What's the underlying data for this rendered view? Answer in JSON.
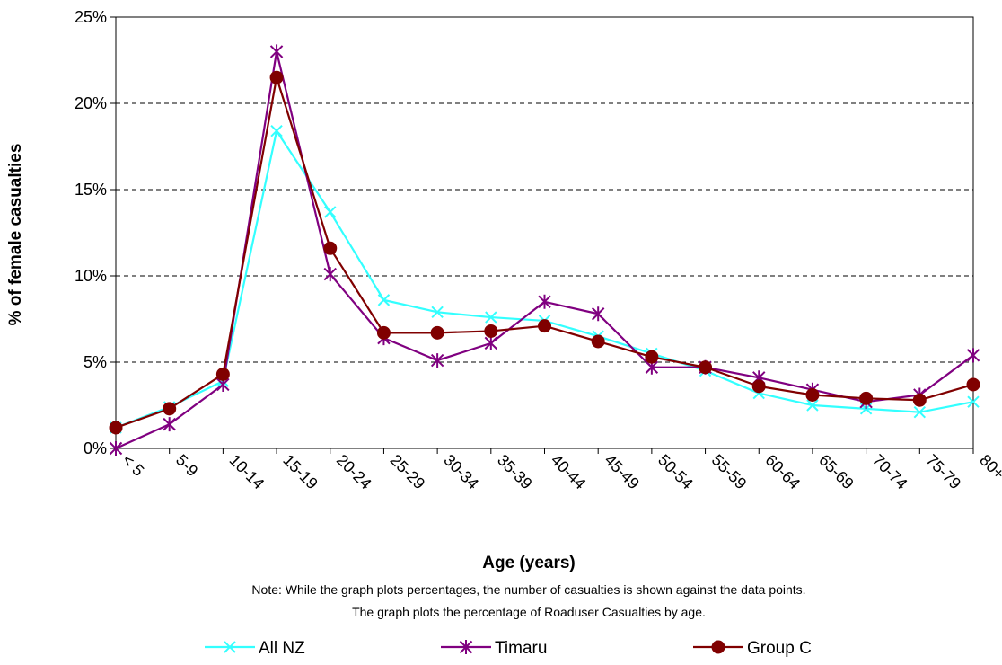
{
  "chart_data": {
    "type": "line",
    "xlabel": "Age (years)",
    "ylabel": "% of female casualties",
    "categories": [
      "< 5",
      "5-9",
      "10-14",
      "15-19",
      "20-24",
      "25-29",
      "30-34",
      "35-39",
      "40-44",
      "45-49",
      "50-54",
      "55-59",
      "60-64",
      "65-69",
      "70-74",
      "75-79",
      "80+"
    ],
    "yticks": [
      "0%",
      "5%",
      "10%",
      "15%",
      "20%",
      "25%"
    ],
    "ylim": [
      0,
      25
    ],
    "grid": true,
    "legend_position": "bottom",
    "notes": [
      "Note: While the graph plots percentages, the number of casualties is shown against the  data points.",
      "The graph plots the percentage of Roaduser Casualties by age."
    ],
    "series": [
      {
        "name": "All NZ",
        "color": "#33FFFF",
        "marker": "x",
        "values": [
          1.2,
          2.4,
          3.9,
          18.4,
          13.7,
          8.6,
          7.9,
          7.6,
          7.4,
          6.5,
          5.5,
          4.5,
          3.2,
          2.5,
          2.3,
          2.1,
          2.7
        ]
      },
      {
        "name": "Timaru",
        "color": "#800080",
        "marker": "star",
        "values": [
          0.0,
          1.4,
          3.7,
          23.0,
          10.1,
          6.4,
          5.1,
          6.1,
          8.5,
          7.8,
          4.7,
          4.7,
          4.1,
          3.4,
          2.7,
          3.1,
          5.4
        ]
      },
      {
        "name": "Group C",
        "color": "#800000",
        "marker": "circle",
        "values": [
          1.2,
          2.3,
          4.3,
          21.5,
          11.6,
          6.7,
          6.7,
          6.8,
          7.1,
          6.2,
          5.3,
          4.7,
          3.6,
          3.1,
          2.9,
          2.8,
          3.7
        ]
      }
    ]
  }
}
